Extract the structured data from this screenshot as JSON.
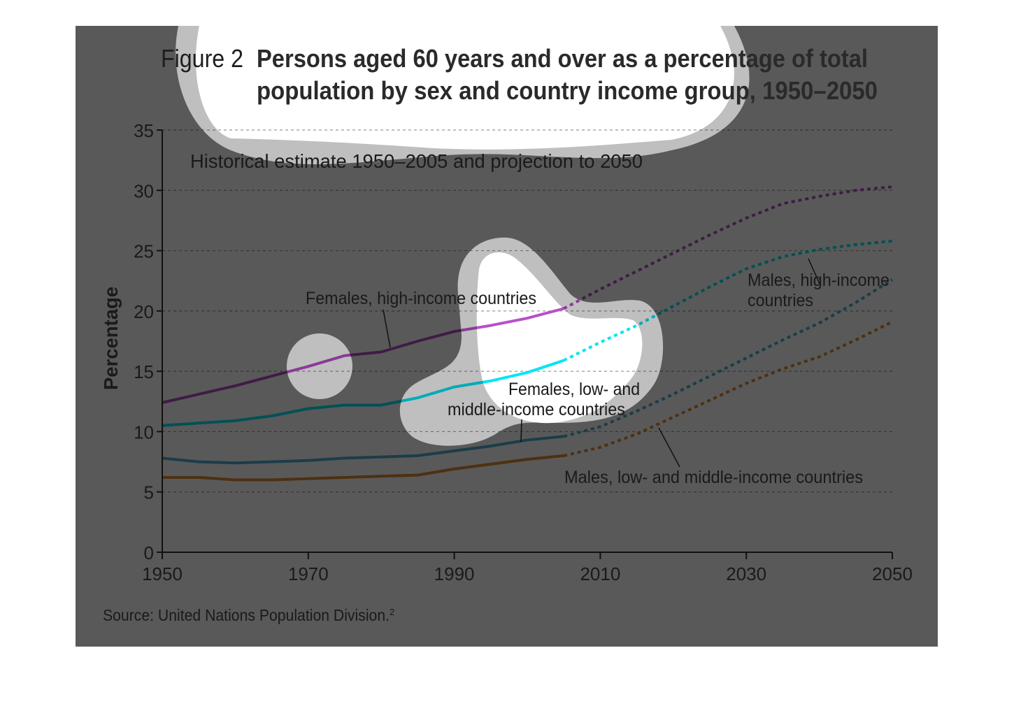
{
  "chart_data": {
    "type": "line",
    "figure_label": "Figure 2",
    "title_line1": "Persons aged 60 years and over as a percentage of total",
    "title_line2": "population by sex and country income group, 1950–2050",
    "subtitle": "Historical estimate 1950–2005 and projection to 2050",
    "ylabel": "Percentage",
    "xlabel": "",
    "xlim": [
      1950,
      2050
    ],
    "ylim": [
      0,
      35
    ],
    "x_ticks": [
      "1950",
      "1970",
      "1990",
      "2010",
      "2030",
      "2050"
    ],
    "y_ticks": [
      "0",
      "5",
      "10",
      "15",
      "20",
      "25",
      "30",
      "35"
    ],
    "grid": "horizontal dashed",
    "historical_until": 2005,
    "x": [
      1950,
      1955,
      1960,
      1965,
      1970,
      1975,
      1980,
      1985,
      1990,
      1995,
      2000,
      2005,
      2010,
      2015,
      2020,
      2025,
      2030,
      2035,
      2040,
      2045,
      2050
    ],
    "series": [
      {
        "name": "Females, high-income countries",
        "color": "#b84fc9",
        "values": [
          12.4,
          13.1,
          13.8,
          14.6,
          15.4,
          16.3,
          16.6,
          17.5,
          18.3,
          18.8,
          19.4,
          20.2,
          21.8,
          23.3,
          24.8,
          26.3,
          27.7,
          28.9,
          29.5,
          30.0,
          30.3
        ]
      },
      {
        "name": "Males, high-income countries",
        "color": "#00e5f5",
        "values": [
          10.5,
          10.7,
          10.9,
          11.3,
          11.9,
          12.2,
          12.2,
          12.8,
          13.7,
          14.2,
          14.9,
          15.9,
          17.4,
          18.8,
          20.4,
          22.0,
          23.5,
          24.5,
          25.1,
          25.5,
          25.8
        ]
      },
      {
        "name": "Females, low- and middle-income countries",
        "color": "#4aaed2",
        "values": [
          7.8,
          7.5,
          7.4,
          7.5,
          7.6,
          7.8,
          7.9,
          8.0,
          8.4,
          8.8,
          9.3,
          9.6,
          10.4,
          11.7,
          13.1,
          14.6,
          16.1,
          17.6,
          19.0,
          20.7,
          22.6
        ]
      },
      {
        "name": "Males, low- and middle-income countries",
        "color": "#e08a30",
        "values": [
          6.2,
          6.2,
          6.0,
          6.0,
          6.1,
          6.2,
          6.3,
          6.4,
          6.9,
          7.3,
          7.7,
          8.0,
          8.7,
          9.8,
          11.2,
          12.6,
          14.0,
          15.2,
          16.2,
          17.6,
          19.1
        ]
      }
    ],
    "annotations": {
      "females_high": "Females, high-income countries",
      "females_low_1": "Females, low- and",
      "females_low_2": "middle-income countries",
      "males_high_1": "Males, high-income",
      "males_high_2": "countries",
      "males_low": "Males, low- and middle-income countries"
    },
    "source": "Source: United Nations Population Division.",
    "source_note": "2"
  }
}
